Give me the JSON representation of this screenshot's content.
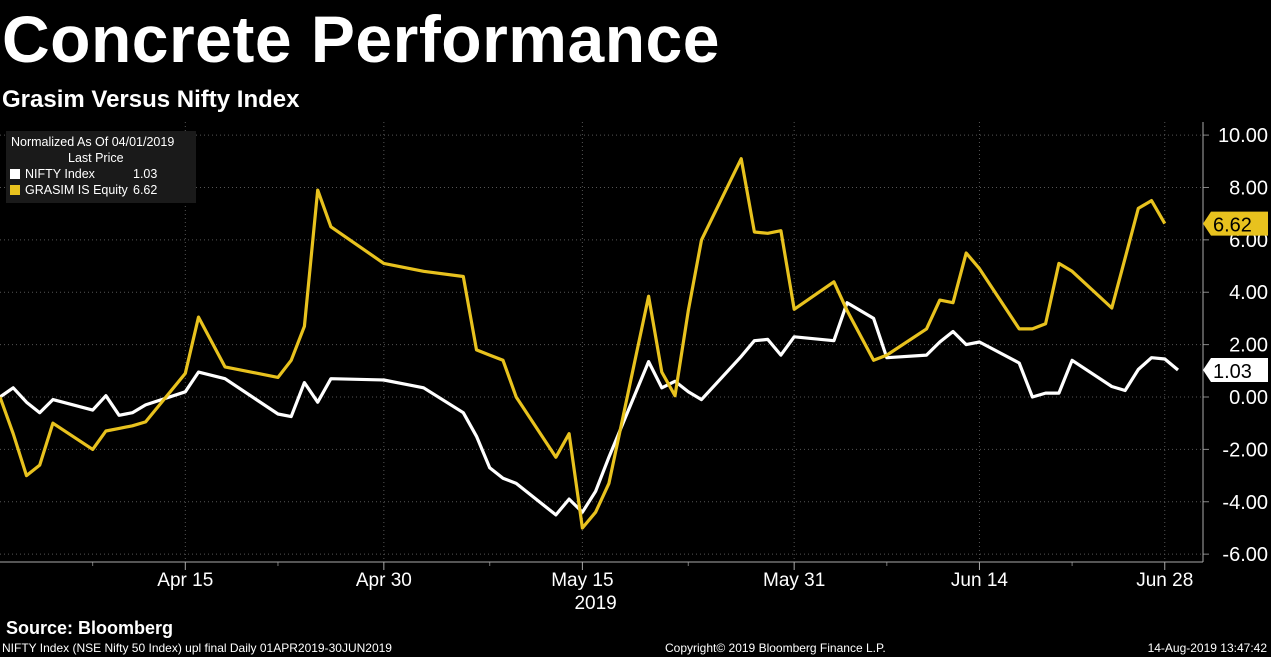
{
  "title": "Concrete Performance",
  "subtitle": "Grasim Versus Nifty Index",
  "legend": {
    "header": "Normalized As Of 04/01/2019",
    "subheader": "Last Price",
    "entries": [
      {
        "name": "NIFTY Index",
        "value": "1.03",
        "color": "#ffffff"
      },
      {
        "name": "GRASIM IS Equity",
        "value": "6.62",
        "color": "#e8c21e"
      }
    ]
  },
  "source": "Source: Bloomberg",
  "footer": {
    "left": "NIFTY Index (NSE Nifty 50 Index) upl final  Daily 01APR2019-30JUN2019",
    "middle": "Copyright© 2019 Bloomberg Finance L.P.",
    "right": "14-Aug-2019 13:47:42"
  },
  "chart_data": {
    "type": "line",
    "x_axis": {
      "ticks": [
        "Apr 15",
        "Apr 30",
        "May 15",
        "May 31",
        "Jun 14",
        "Jun 28"
      ],
      "year_label": "2019"
    },
    "y_axis": {
      "ticks": [
        "10.00",
        "8.00",
        "6.00",
        "4.00",
        "2.00",
        "0.00",
        "-2.00",
        "-4.00",
        "-6.00"
      ],
      "ylim": [
        -6.3,
        10.5
      ],
      "side": "right"
    },
    "grid": true,
    "last_value_labels": [
      "1.03",
      "6.62"
    ],
    "series": [
      {
        "name": "NIFTY Index",
        "color": "#ffffff",
        "points": [
          [
            "2019-04-01",
            0.0
          ],
          [
            "2019-04-02",
            0.35
          ],
          [
            "2019-04-03",
            -0.2
          ],
          [
            "2019-04-04",
            -0.6
          ],
          [
            "2019-04-05",
            -0.1
          ],
          [
            "2019-04-08",
            -0.5
          ],
          [
            "2019-04-09",
            0.05
          ],
          [
            "2019-04-10",
            -0.7
          ],
          [
            "2019-04-11",
            -0.6
          ],
          [
            "2019-04-12",
            -0.3
          ],
          [
            "2019-04-15",
            0.2
          ],
          [
            "2019-04-16",
            0.95
          ],
          [
            "2019-04-18",
            0.7
          ],
          [
            "2019-04-22",
            -0.65
          ],
          [
            "2019-04-23",
            -0.75
          ],
          [
            "2019-04-24",
            0.55
          ],
          [
            "2019-04-25",
            -0.2
          ],
          [
            "2019-04-26",
            0.7
          ],
          [
            "2019-04-30",
            0.65
          ],
          [
            "2019-05-02",
            0.45
          ],
          [
            "2019-05-03",
            0.35
          ],
          [
            "2019-05-06",
            -0.6
          ],
          [
            "2019-05-07",
            -1.5
          ],
          [
            "2019-05-08",
            -2.7
          ],
          [
            "2019-05-09",
            -3.1
          ],
          [
            "2019-05-10",
            -3.3
          ],
          [
            "2019-05-13",
            -4.5
          ],
          [
            "2019-05-14",
            -3.9
          ],
          [
            "2019-05-15",
            -4.4
          ],
          [
            "2019-05-16",
            -3.6
          ],
          [
            "2019-05-17",
            -2.3
          ],
          [
            "2019-05-20",
            1.35
          ],
          [
            "2019-05-21",
            0.35
          ],
          [
            "2019-05-22",
            0.6
          ],
          [
            "2019-05-23",
            0.2
          ],
          [
            "2019-05-24",
            -0.1
          ],
          [
            "2019-05-27",
            1.55
          ],
          [
            "2019-05-28",
            2.15
          ],
          [
            "2019-05-29",
            2.2
          ],
          [
            "2019-05-30",
            1.6
          ],
          [
            "2019-05-31",
            2.3
          ],
          [
            "2019-06-03",
            2.15
          ],
          [
            "2019-06-04",
            3.6
          ],
          [
            "2019-06-06",
            3.0
          ],
          [
            "2019-06-07",
            1.5
          ],
          [
            "2019-06-10",
            1.6
          ],
          [
            "2019-06-11",
            2.1
          ],
          [
            "2019-06-12",
            2.5
          ],
          [
            "2019-06-13",
            2.0
          ],
          [
            "2019-06-14",
            2.1
          ],
          [
            "2019-06-17",
            1.3
          ],
          [
            "2019-06-18",
            0.0
          ],
          [
            "2019-06-19",
            0.15
          ],
          [
            "2019-06-20",
            0.15
          ],
          [
            "2019-06-21",
            1.4
          ],
          [
            "2019-06-24",
            0.4
          ],
          [
            "2019-06-25",
            0.25
          ],
          [
            "2019-06-26",
            1.05
          ],
          [
            "2019-06-27",
            1.5
          ],
          [
            "2019-06-28",
            1.45
          ],
          [
            "2019-06-29",
            1.03
          ]
        ]
      },
      {
        "name": "GRASIM IS Equity",
        "color": "#e8c21e",
        "points": [
          [
            "2019-04-01",
            0.0
          ],
          [
            "2019-04-02",
            -1.4
          ],
          [
            "2019-04-03",
            -3.0
          ],
          [
            "2019-04-04",
            -2.6
          ],
          [
            "2019-04-05",
            -1.0
          ],
          [
            "2019-04-08",
            -2.0
          ],
          [
            "2019-04-09",
            -1.3
          ],
          [
            "2019-04-10",
            -1.2
          ],
          [
            "2019-04-11",
            -1.1
          ],
          [
            "2019-04-12",
            -0.95
          ],
          [
            "2019-04-15",
            0.9
          ],
          [
            "2019-04-16",
            3.05
          ],
          [
            "2019-04-18",
            1.15
          ],
          [
            "2019-04-22",
            0.75
          ],
          [
            "2019-04-23",
            1.4
          ],
          [
            "2019-04-24",
            2.7
          ],
          [
            "2019-04-25",
            7.9
          ],
          [
            "2019-04-26",
            6.5
          ],
          [
            "2019-04-30",
            5.1
          ],
          [
            "2019-05-02",
            4.9
          ],
          [
            "2019-05-03",
            4.8
          ],
          [
            "2019-05-06",
            4.6
          ],
          [
            "2019-05-07",
            1.8
          ],
          [
            "2019-05-08",
            1.6
          ],
          [
            "2019-05-09",
            1.4
          ],
          [
            "2019-05-10",
            0.0
          ],
          [
            "2019-05-13",
            -2.3
          ],
          [
            "2019-05-14",
            -1.4
          ],
          [
            "2019-05-15",
            -5.0
          ],
          [
            "2019-05-16",
            -4.4
          ],
          [
            "2019-05-17",
            -3.3
          ],
          [
            "2019-05-20",
            3.85
          ],
          [
            "2019-05-21",
            0.95
          ],
          [
            "2019-05-22",
            0.05
          ],
          [
            "2019-05-23",
            3.3
          ],
          [
            "2019-05-24",
            6.0
          ],
          [
            "2019-05-27",
            9.1
          ],
          [
            "2019-05-28",
            6.3
          ],
          [
            "2019-05-29",
            6.25
          ],
          [
            "2019-05-30",
            6.35
          ],
          [
            "2019-05-31",
            3.35
          ],
          [
            "2019-06-03",
            4.4
          ],
          [
            "2019-06-04",
            3.3
          ],
          [
            "2019-06-06",
            1.4
          ],
          [
            "2019-06-07",
            1.6
          ],
          [
            "2019-06-10",
            2.6
          ],
          [
            "2019-06-11",
            3.7
          ],
          [
            "2019-06-12",
            3.6
          ],
          [
            "2019-06-13",
            5.5
          ],
          [
            "2019-06-14",
            4.9
          ],
          [
            "2019-06-17",
            2.6
          ],
          [
            "2019-06-18",
            2.6
          ],
          [
            "2019-06-19",
            2.8
          ],
          [
            "2019-06-20",
            5.1
          ],
          [
            "2019-06-21",
            4.8
          ],
          [
            "2019-06-24",
            3.4
          ],
          [
            "2019-06-25",
            5.3
          ],
          [
            "2019-06-26",
            7.2
          ],
          [
            "2019-06-27",
            7.5
          ],
          [
            "2019-06-28",
            6.62
          ]
        ]
      }
    ]
  }
}
